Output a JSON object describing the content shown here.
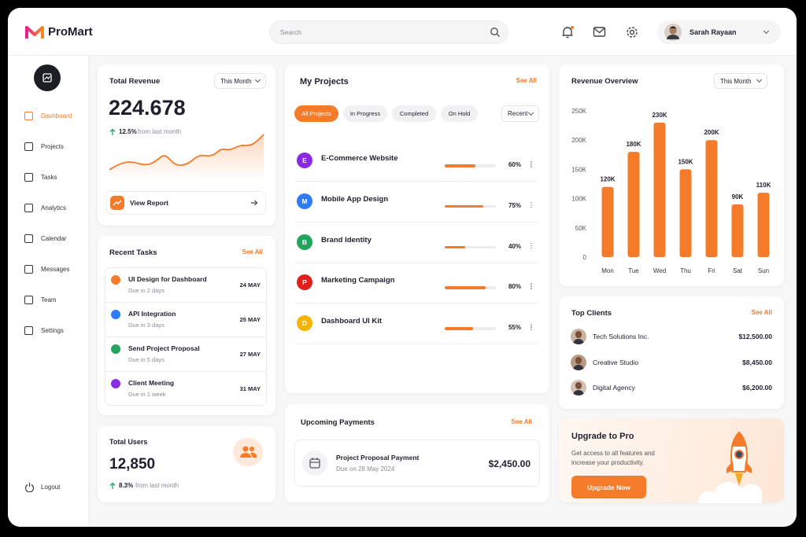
{
  "header": {
    "brand": "ProMart",
    "search_placeholder": "Search",
    "user_name": "Sarah Rayaan"
  },
  "sidebar": {
    "nav": [
      "Dashboard",
      "Projects",
      "Tasks",
      "Analytics",
      "Calendar",
      "Messages",
      "Team",
      "Settings"
    ],
    "logout": "Logout"
  },
  "total_revenue": {
    "title": "Total Revenue",
    "period": "This Month",
    "value": "224.678",
    "change": "12.5%",
    "change_text": "from last month",
    "button": "View Report"
  },
  "recent_tasks": {
    "title": "Recent Tasks",
    "see_all": "See All",
    "items": [
      {
        "name": "UI Design for Dashboard",
        "due": "Due in 2 days",
        "date": "24 MAY",
        "color": "#f47b2a"
      },
      {
        "name": "API Integration",
        "due": "Due in 3 days",
        "date": "25 MAY",
        "color": "#2f7cf6"
      },
      {
        "name": "Send Project Proposal",
        "due": "Due in 5 days",
        "date": "27 MAY",
        "color": "#22a45d"
      },
      {
        "name": "Client Meeting",
        "due": "Due in 1 week",
        "date": "31 MAY",
        "color": "#8a2be2"
      }
    ]
  },
  "total_users": {
    "title": "Total Users",
    "value": "12,850",
    "change": "8.3%",
    "change_text": "from last month"
  },
  "projects": {
    "title": "My Projects",
    "see_all": "See All",
    "tabs": [
      "All Projects",
      "In Progress",
      "Completed",
      "On Hold"
    ],
    "sort": "Recent",
    "items": [
      {
        "initial": "E",
        "name": "E-Commerce Website",
        "progress": 60,
        "progress_label": "60%",
        "color": "#8a2be2"
      },
      {
        "initial": "M",
        "name": "Mobile App Design",
        "progress": 75,
        "progress_label": "75%",
        "color": "#2f7cf6"
      },
      {
        "initial": "B",
        "name": "Brand Identity",
        "progress": 40,
        "progress_label": "40%",
        "color": "#22a45d"
      },
      {
        "initial": "P",
        "name": "Marketing Campaign",
        "progress": 80,
        "progress_label": "80%",
        "color": "#e0201b"
      },
      {
        "initial": "D",
        "name": "Dashboard UI Kit",
        "progress": 55,
        "progress_label": "55%",
        "color": "#f5b400"
      }
    ]
  },
  "payments": {
    "title": "Upcoming Payments",
    "see_all": "See All",
    "items": [
      {
        "name": "Project Proposal Payment",
        "due": "Due on 28 May 2024",
        "amount": "$2,450.00"
      }
    ]
  },
  "chart_data": {
    "type": "bar",
    "title": "Revenue Overview",
    "period": "This Month",
    "categories": [
      "Mon",
      "Tue",
      "Wed",
      "Thu",
      "Fri",
      "Sat",
      "Sun"
    ],
    "values": [
      120000,
      180000,
      230000,
      150000,
      200000,
      90000,
      110000
    ],
    "value_labels": [
      "120K",
      "180K",
      "230K",
      "150K",
      "200K",
      "90K",
      "110K"
    ],
    "ylim": [
      0,
      250000
    ],
    "yticks": [
      0,
      {
        "value": 50000,
        "label": "50K"
      },
      {
        "value": 100000,
        "label": "100K"
      },
      {
        "value": 150000,
        "label": "150K"
      },
      {
        "value": 200000,
        "label": "200K"
      },
      {
        "value": 250000,
        "label": "250K"
      }
    ],
    "color": "#f47b2a"
  },
  "top_clients": {
    "title": "Top Clients",
    "see_all": "See All",
    "items": [
      {
        "name": "Tech Solutions Inc.",
        "amount": "$12,500.00"
      },
      {
        "name": "Creative Studio",
        "amount": "$8,450.00"
      },
      {
        "name": "Digital Agency",
        "amount": "$6,200.00"
      }
    ]
  },
  "upgrade": {
    "title": "Upgrade to Pro",
    "text": "Get access to all features and increase your productivity.",
    "button": "Upgrade Now"
  }
}
